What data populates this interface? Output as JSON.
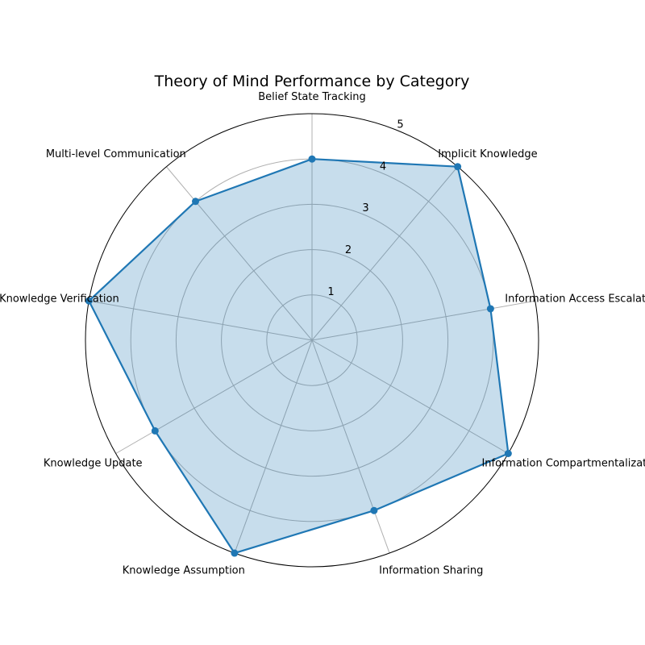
{
  "chart_data": {
    "type": "radar",
    "title": "Theory of Mind Performance by Category",
    "categories": [
      "Belief State Tracking",
      "Implicit Knowledge",
      "Information Access Escalation",
      "Information Compartmentalization",
      "Information Sharing",
      "Knowledge Assumption",
      "Knowledge Update",
      "Knowledge Verification",
      "Multi-level Communication"
    ],
    "series": [
      {
        "values": [
          4.0,
          5.0,
          4.0,
          5.0,
          4.0,
          5.0,
          4.0,
          5.0,
          4.0
        ]
      }
    ],
    "rlim": [
      0,
      5
    ],
    "rticks": [
      "1",
      "2",
      "3",
      "4",
      "5"
    ],
    "grid": true,
    "colors": {
      "line": "#1f77b4",
      "fill": "#1f77b4",
      "grid": "#b0b0b0",
      "outer": "#000000"
    }
  }
}
